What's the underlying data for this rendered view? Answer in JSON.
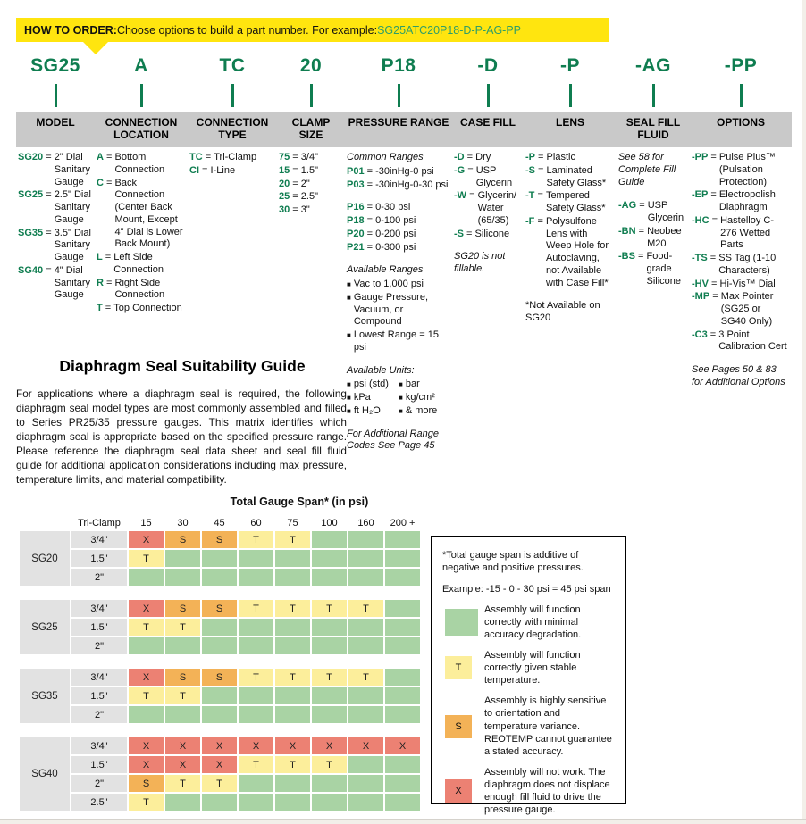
{
  "colors": {
    "brand_green": "#0f7d50",
    "example_green": "#2f9e68",
    "banner_yellow": "#ffe50f",
    "header_gray": "#c9c9c9",
    "label_gray": "#e2e2e2"
  },
  "banner": {
    "prefix": "HOW TO ORDER:",
    "text": " Choose options to build a part number. For example: ",
    "example": "SG25ATC20P18-D-P-AG-PP"
  },
  "part_segments": [
    "SG25",
    "A",
    "TC",
    "20",
    "P18",
    "-D",
    "-P",
    "-AG",
    "-PP"
  ],
  "columns": [
    {
      "header": "MODEL",
      "blocks": [
        {
          "kind": "entry",
          "code": "SG20",
          "desc": "2\" Dial Sanitary Gauge"
        },
        {
          "kind": "entry",
          "code": "SG25",
          "desc": "2.5\" Dial Sanitary Gauge"
        },
        {
          "kind": "entry",
          "code": "SG35",
          "desc": "3.5\" Dial Sanitary Gauge"
        },
        {
          "kind": "entry",
          "code": "SG40",
          "desc": "4\" Dial Sanitary Gauge"
        }
      ]
    },
    {
      "header": "CONNECTION LOCATION",
      "blocks": [
        {
          "kind": "entry",
          "code": "A",
          "desc": "Bottom Connection"
        },
        {
          "kind": "entry",
          "code": "C",
          "desc": "Back Connection (Center Back Mount, Except 4\" Dial is Lower Back Mount)"
        },
        {
          "kind": "entry",
          "code": "L",
          "desc": "Left Side Connection"
        },
        {
          "kind": "entry",
          "code": "R",
          "desc": "Right Side Connection"
        },
        {
          "kind": "entry",
          "code": "T",
          "desc": "Top Connection"
        }
      ]
    },
    {
      "header": "CONNECTION TYPE",
      "blocks": [
        {
          "kind": "entry",
          "code": "TC",
          "desc": "Tri-Clamp"
        },
        {
          "kind": "entry",
          "code": "CI",
          "desc": "I-Line"
        }
      ]
    },
    {
      "header": "CLAMP SIZE",
      "blocks": [
        {
          "kind": "entry",
          "code": "75",
          "desc": "3/4\""
        },
        {
          "kind": "entry",
          "code": "15",
          "desc": "1.5\""
        },
        {
          "kind": "entry",
          "code": "20",
          "desc": "2\""
        },
        {
          "kind": "entry",
          "code": "25",
          "desc": "2.5\""
        },
        {
          "kind": "entry",
          "code": "30",
          "desc": "3\""
        }
      ]
    },
    {
      "header": "PRESSURE RANGE",
      "blocks": [
        {
          "kind": "note",
          "text": "Common Ranges"
        },
        {
          "kind": "entry",
          "code": "P01",
          "desc": "-30inHg-0 psi"
        },
        {
          "kind": "entry",
          "code": "P03",
          "desc": "-30inHg-0-30 psi"
        },
        {
          "kind": "spacer"
        },
        {
          "kind": "entry",
          "code": "P16",
          "desc": "0-30 psi"
        },
        {
          "kind": "entry",
          "code": "P18",
          "desc": "0-100 psi"
        },
        {
          "kind": "entry",
          "code": "P20",
          "desc": "0-200 psi"
        },
        {
          "kind": "entry",
          "code": "P21",
          "desc": "0-300 psi"
        },
        {
          "kind": "spacer"
        },
        {
          "kind": "note",
          "text": "Available Ranges"
        },
        {
          "kind": "bullet",
          "text": "Vac to 1,000 psi"
        },
        {
          "kind": "bullet",
          "text": "Gauge Pressure, Vacuum, or Compound"
        },
        {
          "kind": "bullet",
          "text": "Lowest Range = 15 psi"
        },
        {
          "kind": "spacer"
        },
        {
          "kind": "note",
          "text": "Available Units:"
        },
        {
          "kind": "bullet2",
          "left": "psi (std)",
          "right": "bar"
        },
        {
          "kind": "bullet2",
          "left": "kPa",
          "right": "kg/cm²"
        },
        {
          "kind": "bullet2",
          "left": "ft H₂O",
          "right": "& more"
        },
        {
          "kind": "spacer"
        },
        {
          "kind": "note",
          "text": "For Additional Range Codes See Page 45"
        }
      ]
    },
    {
      "header": "CASE FILL",
      "blocks": [
        {
          "kind": "entry",
          "code": "-D",
          "desc": "Dry"
        },
        {
          "kind": "entry",
          "code": "-G",
          "desc": "USP Glycerin"
        },
        {
          "kind": "entry",
          "code": "-W",
          "desc": "Glycerin/ Water (65/35)"
        },
        {
          "kind": "entry",
          "code": "-S",
          "desc": "Silicone"
        },
        {
          "kind": "spacer"
        },
        {
          "kind": "note",
          "text": "SG20 is not fillable."
        }
      ]
    },
    {
      "header": "LENS",
      "blocks": [
        {
          "kind": "entry",
          "code": "-P",
          "desc": "Plastic"
        },
        {
          "kind": "entry",
          "code": "-S",
          "desc": "Laminated Safety Glass*"
        },
        {
          "kind": "entry",
          "code": "-T",
          "desc": "Tempered Safety Glass*"
        },
        {
          "kind": "entry",
          "code": "-F",
          "desc": "Polysulfone Lens with Weep Hole for Autoclaving, not Available with Case Fill*"
        },
        {
          "kind": "spacer"
        },
        {
          "kind": "plain",
          "text": "*Not Available on SG20"
        }
      ]
    },
    {
      "header": "SEAL FILL FLUID",
      "blocks": [
        {
          "kind": "note",
          "text": "See 58 for Complete Fill Guide"
        },
        {
          "kind": "spacer"
        },
        {
          "kind": "entry",
          "code": "-AG",
          "desc": "USP Glycerin"
        },
        {
          "kind": "entry",
          "code": "-BN",
          "desc": "Neobee M20"
        },
        {
          "kind": "entry",
          "code": "-BS",
          "desc": "Food-grade Silicone"
        }
      ]
    },
    {
      "header": "OPTIONS",
      "blocks": [
        {
          "kind": "entry",
          "code": "-PP",
          "desc": "Pulse Plus™ (Pulsation Protection)"
        },
        {
          "kind": "entry",
          "code": "-EP",
          "desc": "Electropolish Diaphragm"
        },
        {
          "kind": "entry",
          "code": "-HC",
          "desc": "Hastelloy C-276 Wetted Parts"
        },
        {
          "kind": "entry",
          "code": "-TS",
          "desc": "SS Tag (1-10 Characters)"
        },
        {
          "kind": "entry",
          "code": "-HV",
          "desc": "Hi-Vis™ Dial"
        },
        {
          "kind": "entry",
          "code": "-MP",
          "desc": "Max Pointer (SG25 or SG40 Only)"
        },
        {
          "kind": "entry",
          "code": "-C3",
          "desc": "3 Point Calibration Cert"
        },
        {
          "kind": "spacer"
        },
        {
          "kind": "note",
          "text": "See Pages 50 & 83 for Additional Options"
        }
      ]
    }
  ],
  "guide": {
    "title": "Diaphragm Seal Suitability Guide",
    "paragraph": "For applications where a diaphragm seal is required, the following diaphragm seal model types are most commonly assembled and filled to Series PR25/35 pressure gauges. This matrix identifies which diaphragm seal is appropriate based on the specified pressure range. Please reference the diaphragm seal data sheet and seal fill fluid guide for additional application considerations including max pressure, temperature limits, and material compatibility."
  },
  "cell_styles": {
    "G": {
      "bg": "#a9d3a4",
      "label": ""
    },
    "T": {
      "bg": "#fcee9b",
      "label": "T"
    },
    "S": {
      "bg": "#f3b257",
      "label": "S"
    },
    "X": {
      "bg": "#ec8173",
      "label": "X"
    }
  },
  "chart_data": {
    "type": "heatmap",
    "title": "Total Gauge Span* (in psi)",
    "row_header_label": "Tri-Clamp",
    "col_headers": [
      "15",
      "30",
      "45",
      "60",
      "75",
      "100",
      "160",
      "200 +"
    ],
    "groups": [
      {
        "model": "SG20",
        "rows": [
          {
            "size": "3/4\"",
            "cells": [
              "X",
              "S",
              "S",
              "T",
              "T",
              "G",
              "G",
              "G"
            ]
          },
          {
            "size": "1.5\"",
            "cells": [
              "T",
              "G",
              "G",
              "G",
              "G",
              "G",
              "G",
              "G"
            ]
          },
          {
            "size": "2\"",
            "cells": [
              "G",
              "G",
              "G",
              "G",
              "G",
              "G",
              "G",
              "G"
            ]
          }
        ]
      },
      {
        "model": "SG25",
        "rows": [
          {
            "size": "3/4\"",
            "cells": [
              "X",
              "S",
              "S",
              "T",
              "T",
              "T",
              "T",
              "G"
            ]
          },
          {
            "size": "1.5\"",
            "cells": [
              "T",
              "T",
              "G",
              "G",
              "G",
              "G",
              "G",
              "G"
            ]
          },
          {
            "size": "2\"",
            "cells": [
              "G",
              "G",
              "G",
              "G",
              "G",
              "G",
              "G",
              "G"
            ]
          }
        ]
      },
      {
        "model": "SG35",
        "rows": [
          {
            "size": "3/4\"",
            "cells": [
              "X",
              "S",
              "S",
              "T",
              "T",
              "T",
              "T",
              "G"
            ]
          },
          {
            "size": "1.5\"",
            "cells": [
              "T",
              "T",
              "G",
              "G",
              "G",
              "G",
              "G",
              "G"
            ]
          },
          {
            "size": "2\"",
            "cells": [
              "G",
              "G",
              "G",
              "G",
              "G",
              "G",
              "G",
              "G"
            ]
          }
        ]
      },
      {
        "model": "SG40",
        "rows": [
          {
            "size": "3/4\"",
            "cells": [
              "X",
              "X",
              "X",
              "X",
              "X",
              "X",
              "X",
              "X"
            ]
          },
          {
            "size": "1.5\"",
            "cells": [
              "X",
              "X",
              "X",
              "T",
              "T",
              "T",
              "G",
              "G"
            ]
          },
          {
            "size": "2\"",
            "cells": [
              "S",
              "T",
              "T",
              "G",
              "G",
              "G",
              "G",
              "G"
            ]
          },
          {
            "size": "2.5\"",
            "cells": [
              "T",
              "G",
              "G",
              "G",
              "G",
              "G",
              "G",
              "G"
            ]
          }
        ]
      }
    ]
  },
  "legend": {
    "note_line1": "*Total gauge span is additive of negative and positive pressures.",
    "note_line2": "Example: -15 - 0 - 30 psi = 45 psi span",
    "items": [
      {
        "type": "G",
        "text": "Assembly will function correctly with minimal accuracy degradation."
      },
      {
        "type": "T",
        "text": "Assembly will function correctly given stable temperature."
      },
      {
        "type": "S",
        "text": "Assembly is highly sensitive to orientation and temperature variance. REOTEMP cannot guarantee a stated accuracy."
      },
      {
        "type": "X",
        "text": "Assembly will not work. The diaphragm does not displace enough fill fluid to drive the pressure gauge."
      }
    ]
  }
}
